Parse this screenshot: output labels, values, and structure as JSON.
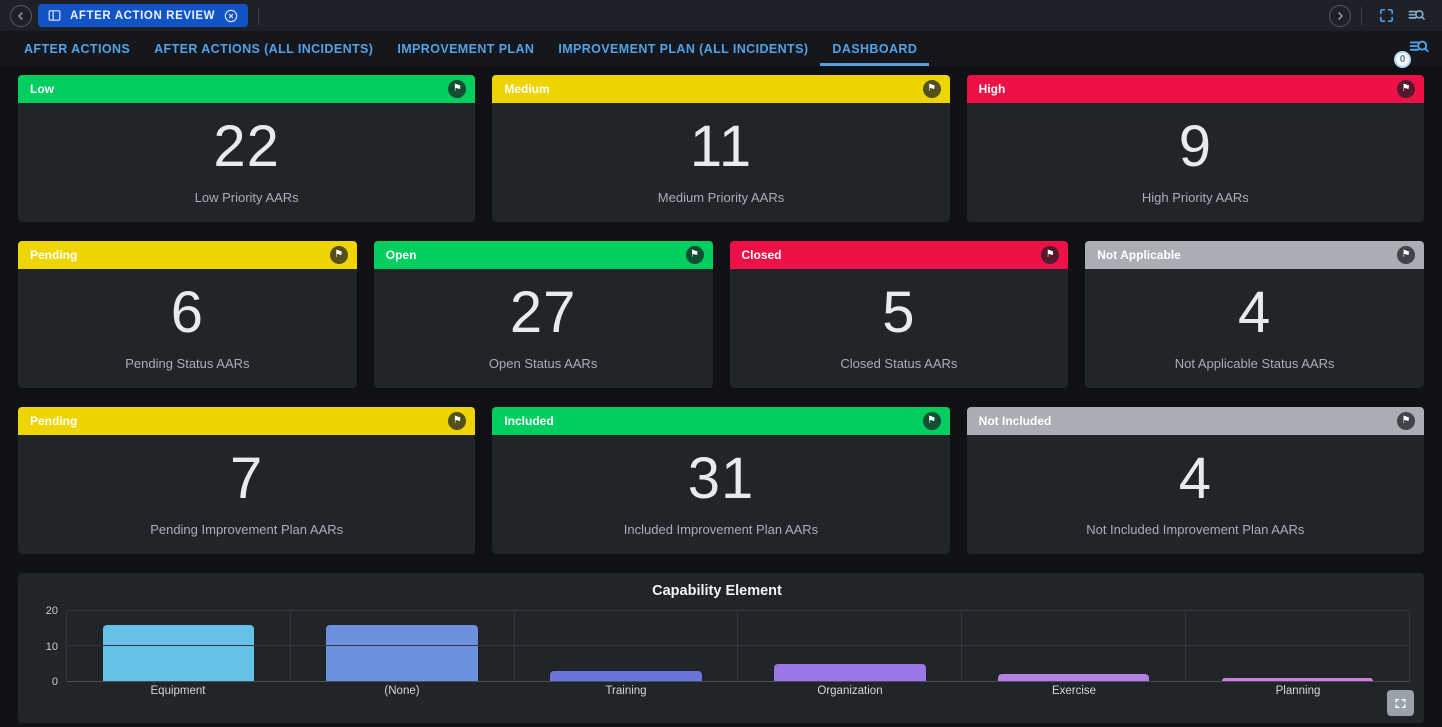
{
  "top_bar": {
    "document_tab_label": "AFTER ACTION REVIEW"
  },
  "tab_bar": {
    "tabs": [
      {
        "label": "AFTER ACTIONS"
      },
      {
        "label": "AFTER ACTIONS (ALL INCIDENTS)"
      },
      {
        "label": "IMPROVEMENT PLAN"
      },
      {
        "label": "IMPROVEMENT PLAN (ALL INCIDENTS)"
      },
      {
        "label": "DASHBOARD"
      }
    ],
    "active_tab": "DASHBOARD",
    "search_badge": "0"
  },
  "icons": {
    "flag": "⚑"
  },
  "colors": {
    "green": "#00ce5e",
    "yellow": "#eed502",
    "red": "#ee1147",
    "gray": "#a9aeb5",
    "accent_blue": "#52a2e6",
    "doc_tab_blue": "#1353c8"
  },
  "cards": {
    "row1": [
      {
        "header": "Low",
        "color": "#00ce5e",
        "value": "22",
        "caption": "Low Priority AARs"
      },
      {
        "header": "Medium",
        "color": "#eed502",
        "value": "11",
        "caption": "Medium Priority AARs"
      },
      {
        "header": "High",
        "color": "#ee1147",
        "value": "9",
        "caption": "High Priority AARs"
      }
    ],
    "row2": [
      {
        "header": "Pending",
        "color": "#eed502",
        "value": "6",
        "caption": "Pending Status AARs"
      },
      {
        "header": "Open",
        "color": "#00ce5e",
        "value": "27",
        "caption": "Open Status AARs"
      },
      {
        "header": "Closed",
        "color": "#ee1147",
        "value": "5",
        "caption": "Closed Status AARs"
      },
      {
        "header": "Not Applicable",
        "color": "#a9aeb5",
        "value": "4",
        "caption": "Not Applicable Status AARs"
      }
    ],
    "row3": [
      {
        "header": "Pending",
        "color": "#eed502",
        "value": "7",
        "caption": "Pending Improvement Plan AARs"
      },
      {
        "header": "Included",
        "color": "#00ce5e",
        "value": "31",
        "caption": "Included Improvement Plan AARs"
      },
      {
        "header": "Not Included",
        "color": "#a9aeb5",
        "value": "4",
        "caption": "Not Included Improvement Plan AARs"
      }
    ]
  },
  "chart_data": {
    "type": "bar",
    "title": "Capability Element",
    "categories": [
      "Equipment",
      "(None)",
      "Training",
      "Organization",
      "Exercise",
      "Planning"
    ],
    "values": [
      16,
      16,
      3,
      5,
      2,
      1
    ],
    "bar_colors": [
      "#66c1e8",
      "#6b90dd",
      "#6a74da",
      "#9a77e6",
      "#b680e2",
      "#d07ce0"
    ],
    "ylim": [
      0,
      20
    ],
    "yticks": [
      0,
      10,
      20
    ],
    "xlabel": "",
    "ylabel": "",
    "grid": true,
    "legend": false
  }
}
